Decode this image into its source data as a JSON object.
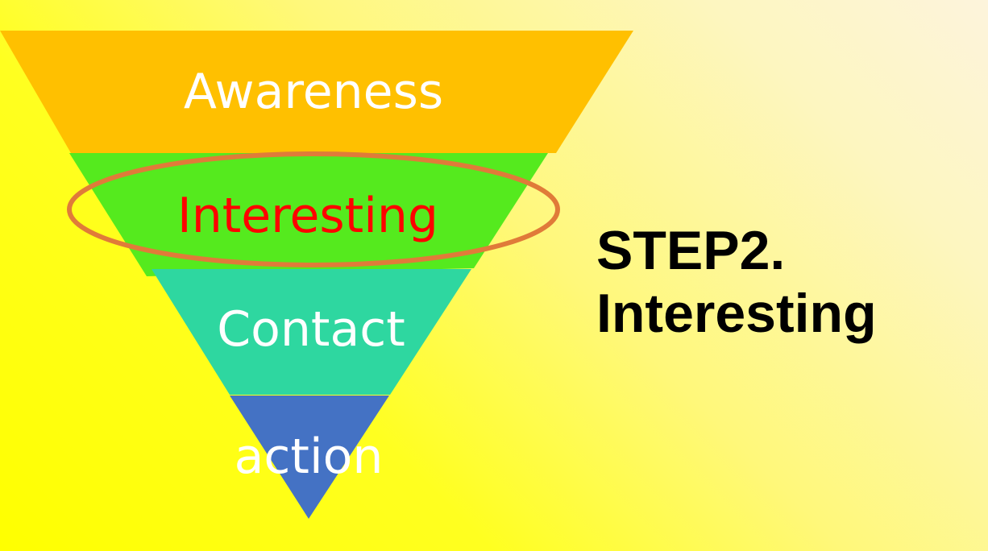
{
  "funnel": {
    "stages": [
      {
        "label": "Awareness",
        "fill": "#ffc000",
        "text_color": "#ffffff"
      },
      {
        "label": "Interesting",
        "fill": "#55ea1e",
        "text_color": "#ff0000",
        "highlighted": true
      },
      {
        "label": "Contact",
        "fill": "#2ed7a0",
        "text_color": "#ffffff"
      },
      {
        "label": "action",
        "fill": "#4472c4",
        "text_color": "#ffffff"
      }
    ],
    "highlight_color": "#e07b39"
  },
  "step": {
    "line1": "STEP2.",
    "line2": "Interesting"
  }
}
